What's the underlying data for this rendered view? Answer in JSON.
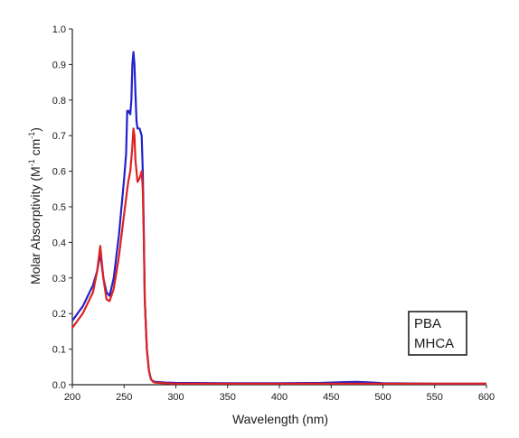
{
  "chart_data": {
    "type": "line",
    "title": "",
    "xlabel": "Wavelength (nm)",
    "ylabel_parts": [
      "Molar Absorptivity (M",
      "-1",
      " cm",
      "-1",
      ")"
    ],
    "xlim": [
      200,
      600
    ],
    "ylim": [
      0,
      1.0
    ],
    "xticks": [
      "200",
      "250",
      "300",
      "350",
      "400",
      "450",
      "500",
      "550",
      "600"
    ],
    "yticks": [
      "0.0",
      "0.1",
      "0.2",
      "0.3",
      "0.4",
      "0.5",
      "0.6",
      "0.7",
      "0.8",
      "0.9",
      "1.0"
    ],
    "grid": false,
    "legend_position": "bottom-right",
    "series": [
      {
        "name": "PBA",
        "color": "#2222cc",
        "x": [
          200,
          205,
          210,
          215,
          220,
          224,
          227,
          230,
          233,
          236,
          240,
          245,
          250,
          252,
          253,
          254,
          255,
          256,
          257,
          258,
          259,
          260,
          261,
          262,
          263,
          265,
          267,
          268,
          269,
          270,
          272,
          274,
          276,
          278,
          280,
          290,
          300,
          350,
          400,
          440,
          460,
          475,
          490,
          500,
          550,
          600
        ],
        "y": [
          0.18,
          0.2,
          0.22,
          0.25,
          0.28,
          0.32,
          0.37,
          0.3,
          0.26,
          0.25,
          0.3,
          0.42,
          0.58,
          0.65,
          0.77,
          0.765,
          0.77,
          0.76,
          0.8,
          0.9,
          0.935,
          0.9,
          0.82,
          0.74,
          0.72,
          0.72,
          0.7,
          0.6,
          0.44,
          0.24,
          0.1,
          0.04,
          0.015,
          0.01,
          0.008,
          0.006,
          0.005,
          0.004,
          0.004,
          0.005,
          0.007,
          0.008,
          0.006,
          0.004,
          0.003,
          0.003
        ]
      },
      {
        "name": "MHCA",
        "color": "#dd2222",
        "x": [
          200,
          205,
          210,
          215,
          220,
          224,
          227,
          230,
          233,
          236,
          240,
          245,
          250,
          254,
          256,
          258,
          259,
          260,
          261,
          262,
          263,
          265,
          267,
          268,
          269,
          270,
          272,
          274,
          276,
          278,
          280,
          290,
          300,
          350,
          400,
          450,
          500,
          550,
          600
        ],
        "y": [
          0.16,
          0.18,
          0.2,
          0.23,
          0.26,
          0.32,
          0.39,
          0.3,
          0.24,
          0.235,
          0.27,
          0.36,
          0.48,
          0.57,
          0.6,
          0.67,
          0.72,
          0.7,
          0.63,
          0.6,
          0.57,
          0.58,
          0.6,
          0.55,
          0.42,
          0.24,
          0.1,
          0.04,
          0.015,
          0.008,
          0.006,
          0.004,
          0.003,
          0.003,
          0.003,
          0.003,
          0.003,
          0.003,
          0.003
        ]
      }
    ]
  }
}
